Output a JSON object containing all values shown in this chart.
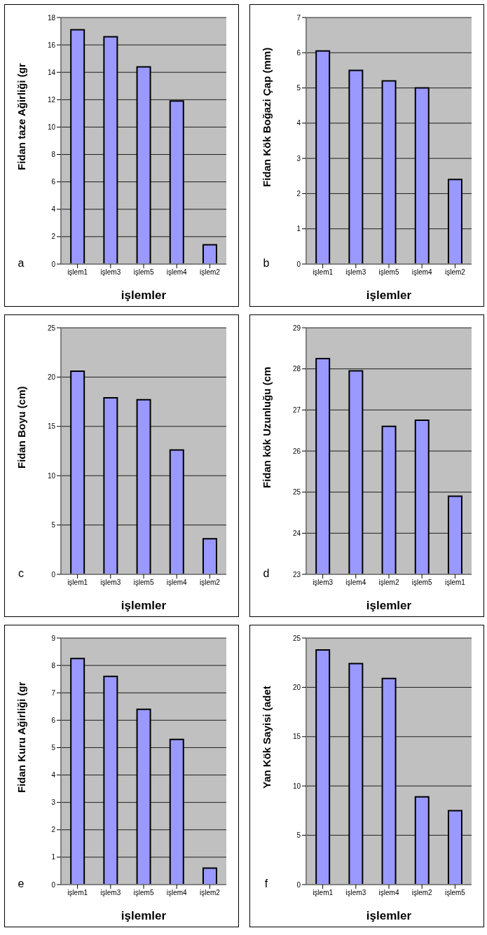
{
  "chart_data": [
    {
      "type": "bar",
      "ylabel": "Fidan taze Ağirliği (gr",
      "xlabel": "işlemler",
      "categories": [
        "işlem1",
        "işlem3",
        "işlem5",
        "işlem4",
        "işlem2"
      ],
      "values": [
        17.1,
        16.6,
        14.4,
        11.9,
        1.4
      ],
      "color": "#9999ff",
      "ylim": [
        0,
        18
      ],
      "yticks": [
        0,
        2,
        4,
        6,
        8,
        10,
        12,
        14,
        16,
        18
      ],
      "grid": "y",
      "annotations": [
        "a"
      ]
    },
    {
      "type": "bar",
      "ylabel": "Fidan Kök Boğazi Çap (mm)",
      "xlabel": "işlemler",
      "categories": [
        "işlem1",
        "işlem3",
        "işlem5",
        "işlem4",
        "işlem2"
      ],
      "values": [
        6.05,
        5.5,
        5.2,
        5.0,
        2.4
      ],
      "color": "#9999ff",
      "ylim": [
        0,
        7
      ],
      "yticks": [
        0,
        1,
        2,
        3,
        4,
        5,
        6,
        7
      ],
      "grid": "y",
      "annotations": [
        "b"
      ]
    },
    {
      "type": "bar",
      "ylabel": "Fidan Boyu (cm)",
      "xlabel": "işlemler",
      "categories": [
        "işlem1",
        "işlem3",
        "işlem5",
        "işlem4",
        "işlem2"
      ],
      "values": [
        20.6,
        17.9,
        17.7,
        12.6,
        3.6
      ],
      "color": "#9999ff",
      "ylim": [
        0,
        25
      ],
      "yticks": [
        0,
        5,
        10,
        15,
        20,
        25
      ],
      "grid": "y",
      "annotations": [
        "c"
      ]
    },
    {
      "type": "bar",
      "ylabel": "Fidan kök Uzunluğu (cm",
      "xlabel": "işlemler",
      "categories": [
        "işlem3",
        "işlem4",
        "işlem2",
        "işlem5",
        "işlem1"
      ],
      "values": [
        28.25,
        27.95,
        26.6,
        26.75,
        24.9
      ],
      "color": "#9999ff",
      "ylim": [
        23,
        29
      ],
      "yticks": [
        23,
        24,
        25,
        26,
        27,
        28,
        29
      ],
      "grid": "y",
      "annotations": [
        "d"
      ]
    },
    {
      "type": "bar",
      "ylabel": "Fidan Kuru Ağirliği (gr",
      "xlabel": "işlemler",
      "categories": [
        "işlem1",
        "işlem3",
        "işlem5",
        "işlem4",
        "işlem2"
      ],
      "values": [
        8.25,
        7.6,
        6.4,
        5.3,
        0.6
      ],
      "color": "#9999ff",
      "ylim": [
        0,
        9
      ],
      "yticks": [
        0,
        1,
        2,
        3,
        4,
        5,
        6,
        7,
        8,
        9
      ],
      "grid": "y",
      "annotations": [
        "e"
      ]
    },
    {
      "type": "bar",
      "ylabel": "Yan Kök Sayisi (adet",
      "xlabel": "işlemler",
      "categories": [
        "işlem1",
        "işlem3",
        "işlem4",
        "işlem2",
        "işlem5"
      ],
      "values": [
        23.8,
        22.4,
        20.9,
        8.9,
        7.5
      ],
      "color": "#9999ff",
      "ylim": [
        0,
        25
      ],
      "yticks": [
        0,
        5,
        10,
        15,
        20,
        25
      ],
      "grid": "y",
      "annotations": [
        "f"
      ]
    }
  ]
}
